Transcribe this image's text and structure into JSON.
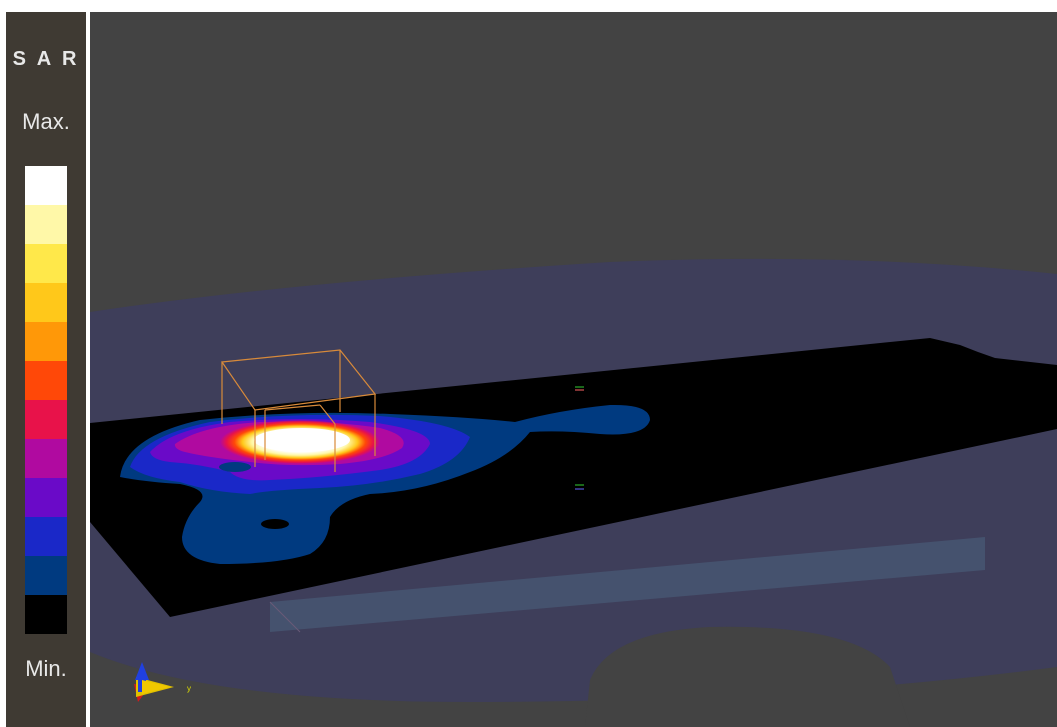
{
  "legend": {
    "title": "S A R",
    "max_label": "Max.",
    "min_label": "Min.",
    "colors": [
      "#ffffff",
      "#fff8a8",
      "#ffe84a",
      "#ffc81a",
      "#ff9808",
      "#ff4808",
      "#e8124a",
      "#b00aa0",
      "#6a0ac8",
      "#1a28c8",
      "#003a80",
      "#000000"
    ]
  },
  "viewport": {
    "background": "#434343",
    "axis_label_y": "y"
  }
}
